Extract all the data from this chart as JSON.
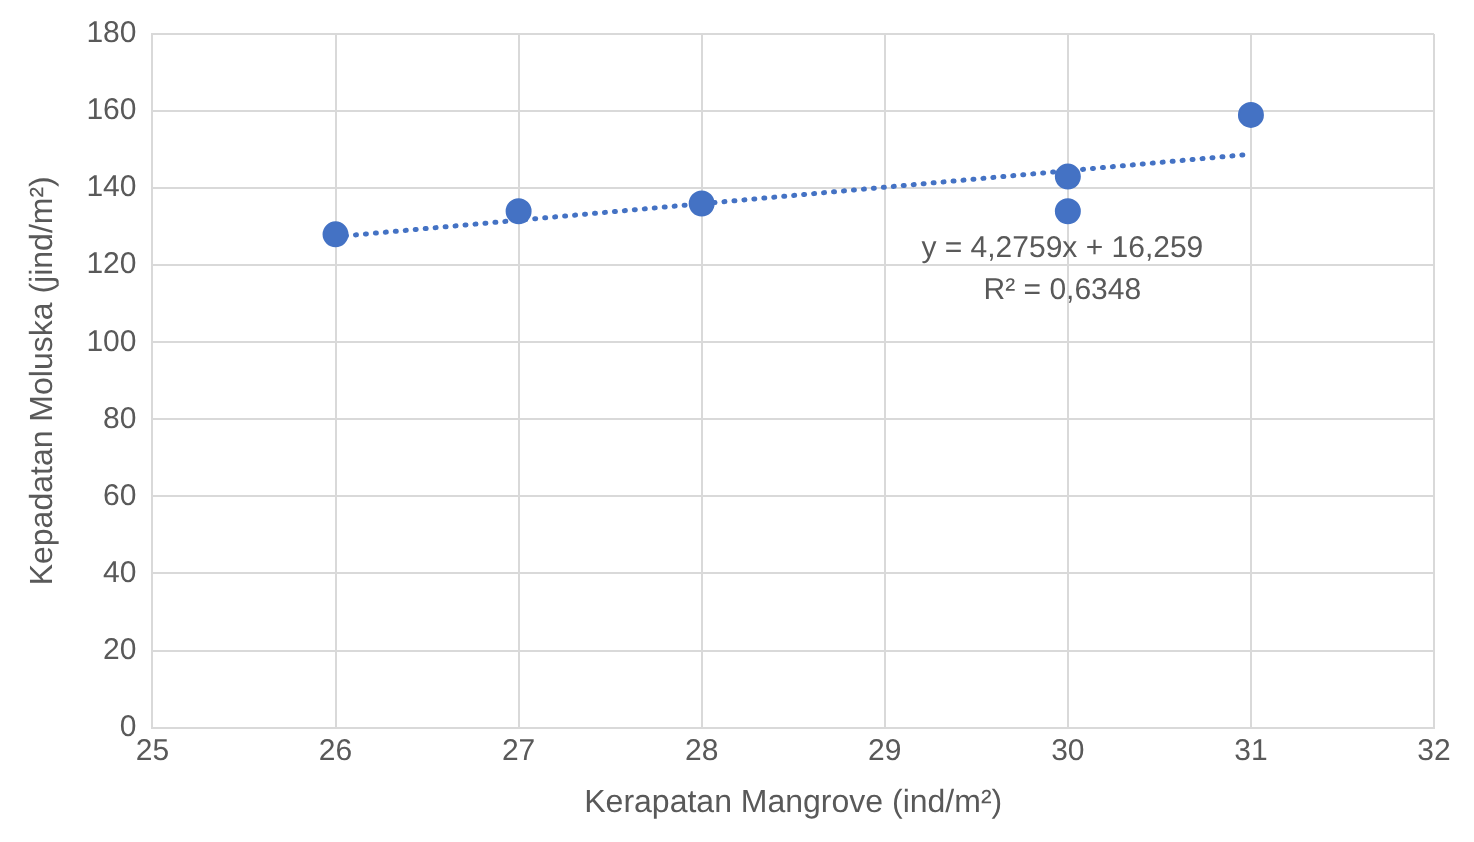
{
  "chart_data": {
    "type": "scatter",
    "xlabel": "Kerapatan Mangrove (ind/m²)",
    "ylabel": "Kepadatan Moluska (jind/m²)",
    "xlim": [
      25,
      32
    ],
    "xticks": [
      25,
      26,
      27,
      28,
      29,
      30,
      31,
      32
    ],
    "ylim": [
      0,
      180
    ],
    "yticks": [
      0,
      20,
      40,
      60,
      80,
      100,
      120,
      140,
      160,
      180
    ],
    "grid": true,
    "legend": false,
    "marker": "circle",
    "series": [
      {
        "type": "scatter",
        "color": "#4472c4",
        "x": [
          26,
          27,
          28,
          30,
          30,
          31
        ],
        "values": [
          128,
          134,
          136,
          143,
          134,
          159
        ]
      },
      {
        "type": "line",
        "color": "#4472c4",
        "line_style": "dotted",
        "marker": "none",
        "x": [
          26,
          31
        ],
        "values": [
          127.4,
          148.8
        ]
      }
    ],
    "annotations": [
      "y = 4,2759x + 16,259",
      "R² = 0,6348"
    ]
  }
}
